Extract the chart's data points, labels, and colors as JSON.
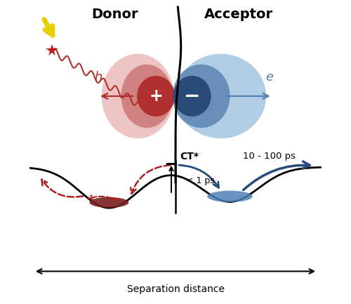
{
  "donor_label": "Donor",
  "acceptor_label": "Acceptor",
  "h_label": "h",
  "e_label": "e",
  "ct_label": "CT*",
  "ps1_label": "< 1 ps",
  "ps2_label": "10 - 100 ps",
  "sep_label": "Separation distance",
  "donor_dark": "#b03030",
  "donor_mid": "#cc7070",
  "donor_light": "#e8b0b0",
  "acceptor_dark": "#2a4a7a",
  "acceptor_mid": "#5580b0",
  "acceptor_light": "#90b8d8",
  "red_blob": "#7a2020",
  "blue_blob": "#5080b8",
  "arrow_red": "#aa2020",
  "arrow_blue": "#2a4a7a",
  "yellow": "#e8d000",
  "star_red": "#bb2020",
  "background": "#ffffff"
}
